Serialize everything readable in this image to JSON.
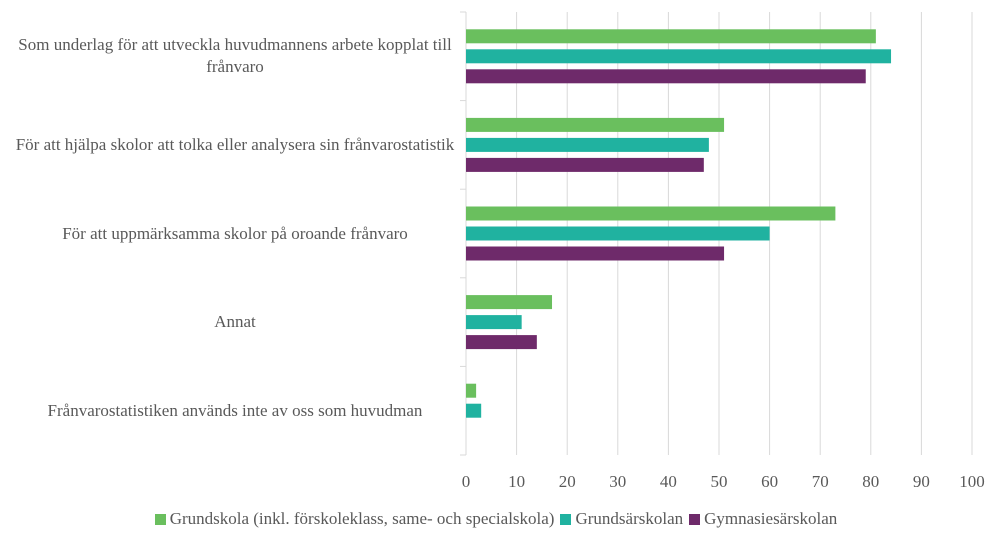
{
  "chart_data": {
    "type": "barh",
    "categories": [
      "Som underlag för att utveckla huvudmannens arbete kopplat till frånvaro",
      "För att hjälpa skolor att tolka eller analysera sin frånvarostatistik",
      "För att uppmärksamma skolor på oroande frånvaro",
      "Annat",
      "Frånvarostatistiken används inte av oss som huvudman"
    ],
    "series": [
      {
        "name": "Grundskola (inkl. förskoleklass, same- och specialskola)",
        "color": "#6abf5e",
        "values": [
          81,
          51,
          73,
          17,
          2
        ]
      },
      {
        "name": "Grundsärskolan",
        "color": "#20b2a0",
        "values": [
          84,
          48,
          60,
          11,
          3
        ]
      },
      {
        "name": "Gymnasiesärskolan",
        "color": "#6e2a6a",
        "values": [
          79,
          47,
          51,
          14,
          0
        ]
      }
    ],
    "xlim": [
      0,
      100
    ],
    "xticks": [
      0,
      10,
      20,
      30,
      40,
      50,
      60,
      70,
      80,
      90,
      100
    ],
    "grid": true,
    "legend": "bottom"
  }
}
